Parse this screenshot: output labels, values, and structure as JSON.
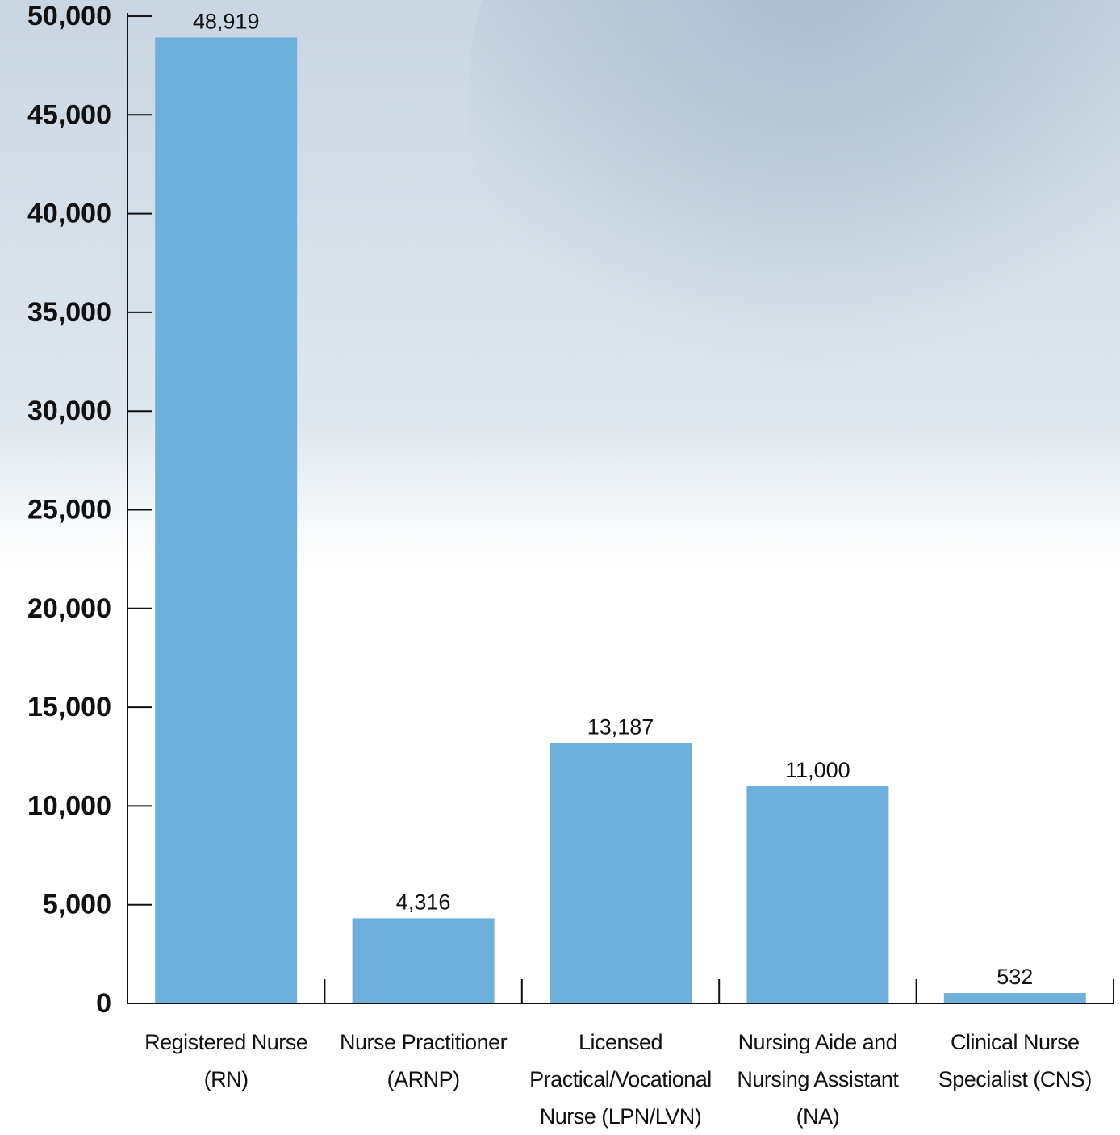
{
  "chart_data": {
    "type": "bar",
    "categories": [
      "Registered Nurse (RN)",
      "Nurse Practitioner (ARNP)",
      "Licensed Practical/Vocational Nurse (LPN/LVN)",
      "Nursing Aide and Nursing Assistant (NA)",
      "Clinical Nurse Specialist (CNS)"
    ],
    "values": [
      48919,
      4316,
      13187,
      11000,
      532
    ],
    "value_labels": [
      "48,919",
      "4,316",
      "13,187",
      "11,000",
      "532"
    ],
    "color": "#6eb0dc",
    "ylim": [
      0,
      50000
    ],
    "yticks": [
      0,
      {
        "value": 5000,
        "label": "5,000"
      },
      {
        "value": 10000,
        "label": "10,000"
      },
      {
        "value": 15000,
        "label": "15,000"
      },
      {
        "value": 20000,
        "label": "20,000"
      },
      {
        "value": 25000,
        "label": "25,000"
      },
      {
        "value": 30000,
        "label": "30,000"
      },
      {
        "value": 35000,
        "label": "35,000"
      },
      {
        "value": 40000,
        "label": "40,000"
      },
      {
        "value": 45000,
        "label": "45,000"
      },
      {
        "value": 50000,
        "label": "50,000"
      }
    ]
  }
}
